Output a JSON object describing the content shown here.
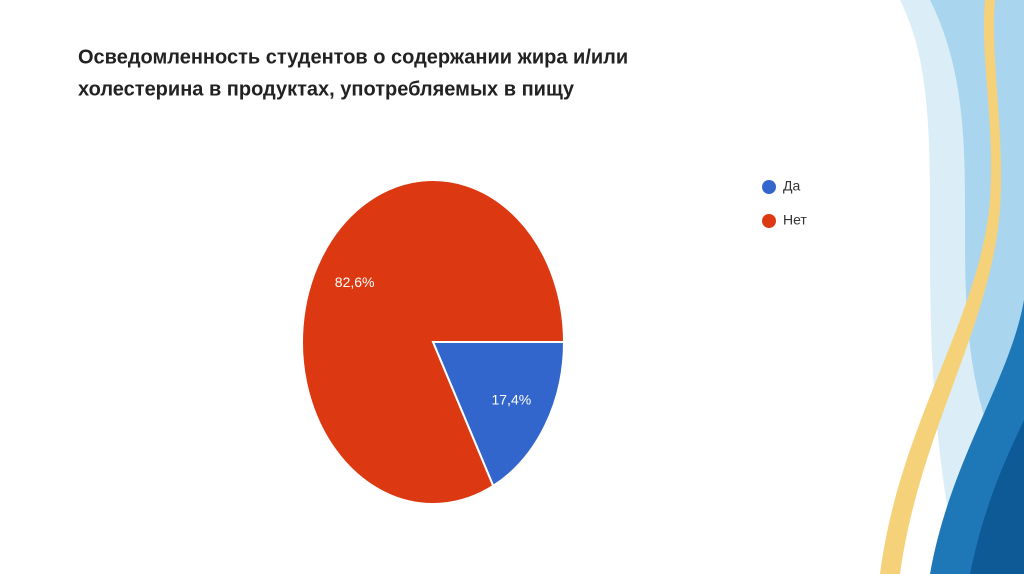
{
  "chart_data": {
    "type": "pie",
    "title": [
      "Осведомленность студентов о содержании жира и/или",
      "холестерина в продуктах, употребляемых в пищу"
    ],
    "categories": [
      "Да",
      "Нет"
    ],
    "values": [
      17.4,
      82.6
    ],
    "value_labels": [
      "17,4%",
      "82,6%"
    ],
    "colors": [
      "#3366cc",
      "#dc3912"
    ],
    "legend": "right"
  }
}
